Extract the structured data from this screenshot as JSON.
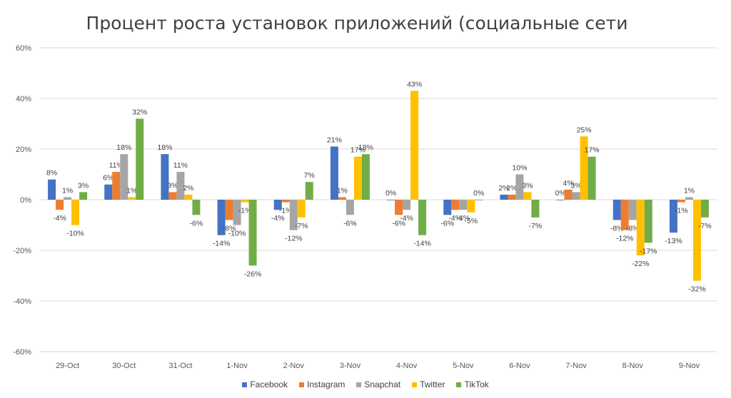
{
  "chart_data": {
    "type": "bar",
    "title": "Процент роста установок приложений (социальные сети",
    "xlabel": "",
    "ylabel": "",
    "ylim": [
      -60,
      60
    ],
    "yticks": [
      -60,
      -40,
      -20,
      0,
      20,
      40,
      60
    ],
    "ytick_labels": [
      "-60%",
      "-40%",
      "-20%",
      "0%",
      "20%",
      "40%",
      "60%"
    ],
    "grid": true,
    "legend_position": "bottom",
    "categories": [
      "29-Oct",
      "30-Oct",
      "31-Oct",
      "1-Nov",
      "2-Nov",
      "3-Nov",
      "4-Nov",
      "5-Nov",
      "6-Nov",
      "7-Nov",
      "8-Nov",
      "9-Nov"
    ],
    "series": [
      {
        "name": "Facebook",
        "color": "#4472C4",
        "values": [
          8,
          6,
          18,
          -14,
          -4,
          21,
          0,
          -6,
          2,
          0,
          -8,
          -13
        ],
        "labels": [
          "8%",
          "6%",
          "18%",
          "-14%",
          "-4%",
          "21%",
          "0%",
          "-6%",
          "2%",
          "0%",
          "-8%",
          "-13%"
        ]
      },
      {
        "name": "Instagram",
        "color": "#ED7D31",
        "values": [
          -4,
          11,
          3,
          -8,
          -1,
          1,
          -6,
          -4,
          2,
          4,
          -12,
          -1
        ],
        "labels": [
          "-4%",
          "11%",
          "3%",
          "-8%",
          "-1%",
          "1%",
          "-6%",
          "-4%",
          "2%",
          "4%",
          "-12%",
          "-1%"
        ]
      },
      {
        "name": "Snapchat",
        "color": "#A5A5A5",
        "values": [
          1,
          18,
          11,
          -10,
          -12,
          -6,
          -4,
          -4,
          10,
          3,
          -8,
          1
        ],
        "labels": [
          "1%",
          "18%",
          "11%",
          "-10%",
          "-12%",
          "-6%",
          "-4%",
          "-4%",
          "10%",
          "3%",
          "-8%",
          "1%"
        ]
      },
      {
        "name": "Twitter",
        "color": "#FFC000",
        "values": [
          -10,
          1,
          2,
          -1,
          -7,
          17,
          43,
          -5,
          3,
          25,
          -22,
          -32
        ],
        "labels": [
          "-10%",
          "1%",
          "2%",
          "-1%",
          "-7%",
          "17%",
          "43%",
          "-5%",
          "3%",
          "25%",
          "-22%",
          "-32%"
        ]
      },
      {
        "name": "TikTok",
        "color": "#70AD47",
        "values": [
          3,
          32,
          -6,
          -26,
          7,
          18,
          -14,
          0,
          -7,
          17,
          -17,
          -7
        ],
        "labels": [
          "3%",
          "32%",
          "-6%",
          "-26%",
          "7%",
          "18%",
          "-14%",
          "0%",
          "-7%",
          "17%",
          "-17%",
          "-7%"
        ]
      }
    ]
  }
}
